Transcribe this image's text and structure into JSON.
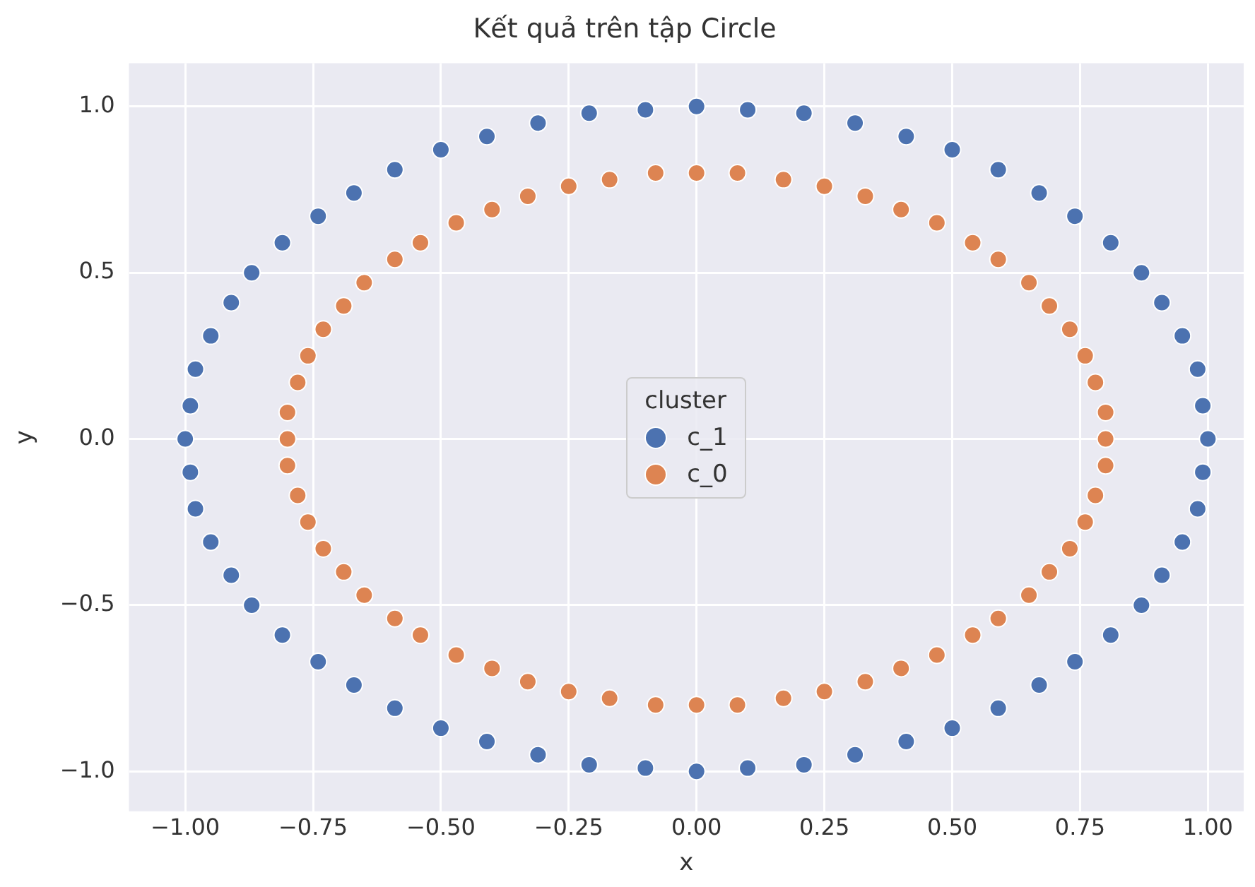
{
  "chart_data": {
    "type": "scatter",
    "title": "Kết quả trên tập Circle",
    "xlabel": "x",
    "ylabel": "y",
    "legend_title": "cluster",
    "legend": "center",
    "grid": true,
    "marker": "circle",
    "xlim": [
      -1.11,
      1.07
    ],
    "ylim": [
      -1.12,
      1.13
    ],
    "xticks": [
      {
        "value": -1,
        "label": "−1.00"
      },
      {
        "value": -0.75,
        "label": "−0.75"
      },
      {
        "value": -0.5,
        "label": "−0.50"
      },
      {
        "value": -0.25,
        "label": "−0.25"
      },
      {
        "value": 0,
        "label": "0.00"
      },
      {
        "value": 0.25,
        "label": "0.25"
      },
      {
        "value": 0.5,
        "label": "0.50"
      },
      {
        "value": 0.75,
        "label": "0.75"
      },
      {
        "value": 1,
        "label": "1.00"
      }
    ],
    "yticks": [
      {
        "value": -1,
        "label": "−1.0"
      },
      {
        "value": -0.5,
        "label": "−0.5"
      },
      {
        "value": 0,
        "label": "0.0"
      },
      {
        "value": 0.5,
        "label": "0.5"
      },
      {
        "value": 1,
        "label": "1.0"
      }
    ],
    "series": [
      {
        "name": "c_1",
        "color": "#4c72b0",
        "x": [
          1.0,
          0.99,
          0.98,
          0.95,
          0.91,
          0.87,
          0.81,
          0.74,
          0.67,
          0.59,
          0.5,
          0.41,
          0.31,
          0.21,
          0.1,
          0.0,
          -0.1,
          -0.21,
          -0.31,
          -0.41,
          -0.5,
          -0.59,
          -0.67,
          -0.74,
          -0.81,
          -0.87,
          -0.91,
          -0.95,
          -0.98,
          -0.99,
          -1.0,
          -0.99,
          -0.98,
          -0.95,
          -0.91,
          -0.87,
          -0.81,
          -0.74,
          -0.67,
          -0.59,
          -0.5,
          -0.41,
          -0.31,
          -0.21,
          -0.1,
          0.0,
          0.1,
          0.21,
          0.31,
          0.41,
          0.5,
          0.59,
          0.67,
          0.74,
          0.81,
          0.87,
          0.91,
          0.95,
          0.98,
          0.99
        ],
        "values": [
          0.0,
          0.1,
          0.21,
          0.31,
          0.41,
          0.5,
          0.59,
          0.67,
          0.74,
          0.81,
          0.87,
          0.91,
          0.95,
          0.98,
          0.99,
          1.0,
          0.99,
          0.98,
          0.95,
          0.91,
          0.87,
          0.81,
          0.74,
          0.67,
          0.59,
          0.5,
          0.41,
          0.31,
          0.21,
          0.1,
          0.0,
          -0.1,
          -0.21,
          -0.31,
          -0.41,
          -0.5,
          -0.59,
          -0.67,
          -0.74,
          -0.81,
          -0.87,
          -0.91,
          -0.95,
          -0.98,
          -0.99,
          -1.0,
          -0.99,
          -0.98,
          -0.95,
          -0.91,
          -0.87,
          -0.81,
          -0.74,
          -0.67,
          -0.59,
          -0.5,
          -0.41,
          -0.31,
          -0.21,
          -0.1
        ]
      },
      {
        "name": "c_0",
        "color": "#dd8452",
        "x": [
          0.8,
          0.8,
          0.78,
          0.76,
          0.73,
          0.69,
          0.65,
          0.59,
          0.54,
          0.47,
          0.4,
          0.33,
          0.25,
          0.17,
          0.08,
          0.0,
          -0.08,
          -0.17,
          -0.25,
          -0.33,
          -0.4,
          -0.47,
          -0.54,
          -0.59,
          -0.65,
          -0.69,
          -0.73,
          -0.76,
          -0.78,
          -0.8,
          -0.8,
          -0.8,
          -0.78,
          -0.76,
          -0.73,
          -0.69,
          -0.65,
          -0.59,
          -0.54,
          -0.47,
          -0.4,
          -0.33,
          -0.25,
          -0.17,
          -0.08,
          0.0,
          0.08,
          0.17,
          0.25,
          0.33,
          0.4,
          0.47,
          0.54,
          0.59,
          0.65,
          0.69,
          0.73,
          0.76,
          0.78,
          0.8
        ],
        "values": [
          0.0,
          0.08,
          0.17,
          0.25,
          0.33,
          0.4,
          0.47,
          0.54,
          0.59,
          0.65,
          0.69,
          0.73,
          0.76,
          0.78,
          0.8,
          0.8,
          0.8,
          0.78,
          0.76,
          0.73,
          0.69,
          0.65,
          0.59,
          0.54,
          0.47,
          0.4,
          0.33,
          0.25,
          0.17,
          0.08,
          0.0,
          -0.08,
          -0.17,
          -0.25,
          -0.33,
          -0.4,
          -0.47,
          -0.54,
          -0.59,
          -0.65,
          -0.69,
          -0.73,
          -0.76,
          -0.78,
          -0.8,
          -0.8,
          -0.8,
          -0.78,
          -0.76,
          -0.73,
          -0.69,
          -0.65,
          -0.59,
          -0.54,
          -0.47,
          -0.4,
          -0.33,
          -0.25,
          -0.17,
          -0.08
        ]
      }
    ]
  }
}
